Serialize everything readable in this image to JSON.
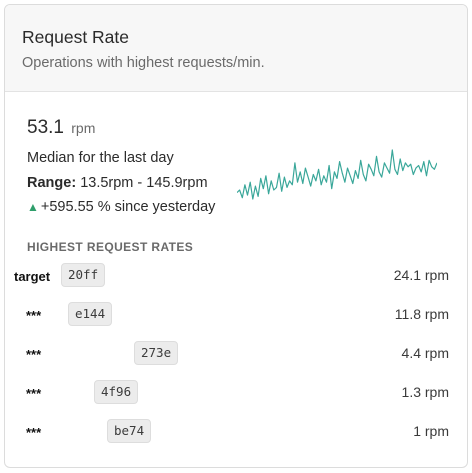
{
  "card": {
    "title": "Request Rate",
    "subtitle": "Operations with highest requests/min."
  },
  "metric": {
    "value": "53.1",
    "unit": "rpm",
    "description": "Median for the last day",
    "range_label": "Range:",
    "range_value": "13.5rpm - 145.9rpm",
    "change_icon": "triangle-up-icon",
    "change_text": "+595.55 % since yesterday",
    "positive_color": "#2f9e6b"
  },
  "sparkline": {
    "color": "#3aa79a",
    "values": [
      22,
      24,
      18,
      28,
      20,
      30,
      17,
      27,
      19,
      33,
      25,
      35,
      21,
      31,
      24,
      26,
      37,
      23,
      34,
      26,
      31,
      28,
      45,
      30,
      38,
      29,
      41,
      34,
      27,
      36,
      31,
      40,
      28,
      35,
      30,
      43,
      25,
      38,
      33,
      46,
      37,
      30,
      41,
      35,
      29,
      39,
      33,
      47,
      36,
      31,
      44,
      40,
      35,
      50,
      38,
      34,
      45,
      41,
      37,
      55,
      40,
      36,
      48,
      39,
      45,
      42,
      44,
      36,
      41,
      43,
      38,
      46,
      35,
      47,
      42,
      40,
      45
    ]
  },
  "section": {
    "heading": "HIGHEST REQUEST RATES"
  },
  "rows": [
    {
      "label": "target",
      "tag": "20ff",
      "rate": "24.1 rpm"
    },
    {
      "label": "***",
      "tag": "e144",
      "rate": "11.8 rpm"
    },
    {
      "label": "***",
      "tag": "273e",
      "rate": "4.4 rpm"
    },
    {
      "label": "***",
      "tag": "4f96",
      "rate": "1.3 rpm"
    },
    {
      "label": "***",
      "tag": "be74",
      "rate": "1 rpm"
    }
  ]
}
